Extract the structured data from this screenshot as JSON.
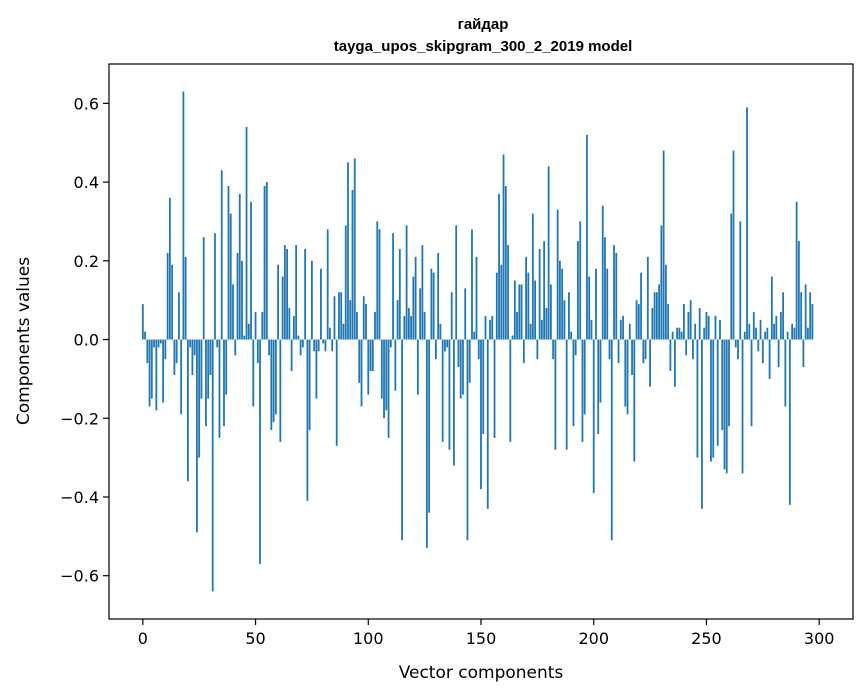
{
  "chart_data": {
    "type": "bar",
    "title": "гайдар",
    "subtitle": "tayga_upos_skipgram_300_2_2019 model",
    "xlabel": "Vector components",
    "ylabel": "Components values",
    "xlim": [
      -15,
      315
    ],
    "ylim": [
      -0.71,
      0.7
    ],
    "xticks": [
      0,
      50,
      100,
      150,
      200,
      250,
      300
    ],
    "yticks": [
      -0.6,
      -0.4,
      -0.2,
      0.0,
      0.2,
      0.4,
      0.6
    ],
    "ytick_labels": [
      "−0.6",
      "−0.4",
      "−0.2",
      "0.0",
      "0.2",
      "0.4",
      "0.6"
    ],
    "color": "#1f77b4",
    "values": [
      0.09,
      0.02,
      -0.06,
      -0.17,
      -0.15,
      -0.02,
      -0.18,
      -0.02,
      -0.01,
      -0.16,
      -0.05,
      0.22,
      0.36,
      0.19,
      -0.09,
      -0.06,
      0.12,
      -0.19,
      0.63,
      0.21,
      -0.36,
      -0.02,
      -0.09,
      -0.04,
      -0.49,
      -0.3,
      -0.15,
      0.26,
      -0.22,
      -0.15,
      -0.09,
      -0.64,
      0.27,
      -0.02,
      -0.25,
      0.43,
      -0.22,
      -0.14,
      0.39,
      0.32,
      0.14,
      -0.04,
      0.22,
      0.37,
      0.2,
      0.01,
      0.54,
      0.04,
      0.35,
      -0.17,
      0.07,
      -0.06,
      -0.57,
      0.07,
      0.39,
      0.4,
      -0.04,
      -0.23,
      -0.21,
      -0.19,
      0.19,
      -0.26,
      0.16,
      0.24,
      0.23,
      0.08,
      -0.08,
      0.06,
      0.24,
      0.01,
      -0.04,
      -0.02,
      0.23,
      -0.41,
      -0.23,
      0.2,
      -0.03,
      -0.15,
      -0.03,
      0.18,
      -0.01,
      -0.03,
      0.28,
      0.03,
      -0.03,
      0.11,
      -0.27,
      0.12,
      0.12,
      0.04,
      0.29,
      0.45,
      0.1,
      0.38,
      0.46,
      0.07,
      -0.11,
      -0.17,
      0.11,
      0.09,
      -0.14,
      -0.08,
      -0.08,
      0.07,
      0.3,
      0.28,
      -0.15,
      -0.2,
      -0.18,
      -0.25,
      -0.02,
      0.27,
      -0.13,
      0.1,
      0.23,
      -0.51,
      0.06,
      0.29,
      0.08,
      0.06,
      0.16,
      0.21,
      -0.14,
      0.13,
      0.24,
      0.07,
      -0.53,
      -0.44,
      0.18,
      0.17,
      -0.05,
      0.22,
      0.04,
      -0.26,
      -0.03,
      -0.02,
      -0.28,
      0.12,
      -0.32,
      0.29,
      -0.07,
      -0.15,
      -0.14,
      0.13,
      -0.51,
      -0.11,
      0.28,
      0.02,
      0.21,
      -0.05,
      -0.38,
      -0.24,
      0.06,
      -0.43,
      0.05,
      0.06,
      -0.25,
      0.17,
      0.37,
      0.19,
      0.47,
      0.39,
      0.24,
      -0.26,
      0.01,
      0.15,
      0.07,
      0.14,
      0.14,
      -0.06,
      0.21,
      0.17,
      0.04,
      0.32,
      0.15,
      -0.05,
      0.23,
      0.05,
      0.25,
      0.08,
      0.44,
      0.14,
      -0.05,
      -0.28,
      0.33,
      0.2,
      0.18,
      0.1,
      -0.28,
      0.12,
      0.02,
      -0.22,
      -0.04,
      0.25,
      0.3,
      -0.26,
      -0.19,
      0.52,
      0.16,
      0.05,
      -0.39,
      0.18,
      -0.24,
      -0.16,
      0.34,
      0.26,
      0.18,
      -0.05,
      -0.51,
      0.24,
      0.22,
      -0.06,
      0.05,
      0.06,
      -0.17,
      -0.19,
      0.04,
      -0.09,
      -0.31,
      0.1,
      0.09,
      0.17,
      -0.06,
      -0.05,
      0.21,
      -0.12,
      0.08,
      0.12,
      0.12,
      0.14,
      0.29,
      0.48,
      0.19,
      0.09,
      -0.08,
      0.02,
      -0.12,
      0.03,
      0.03,
      0.02,
      0.09,
      -0.04,
      0.07,
      0.1,
      -0.05,
      0.04,
      -0.3,
      0.08,
      -0.43,
      0.03,
      0.07,
      0.06,
      -0.31,
      -0.3,
      0.06,
      -0.27,
      0.05,
      -0.23,
      -0.33,
      -0.34,
      -0.22,
      0.32,
      0.48,
      -0.02,
      -0.05,
      0.3,
      -0.34,
      0.02,
      0.59,
      0.04,
      -0.22,
      0.07,
      0.03,
      -0.03,
      0.05,
      -0.06,
      0.02,
      0.03,
      -0.1,
      0.16,
      0.04,
      0.06,
      -0.07,
      0.07,
      0.12,
      -0.17,
      0.02,
      -0.42,
      0.04,
      0.03,
      0.35,
      0.25,
      0.12,
      -0.07,
      0.14,
      0.03,
      0.12,
      0.09
    ]
  }
}
